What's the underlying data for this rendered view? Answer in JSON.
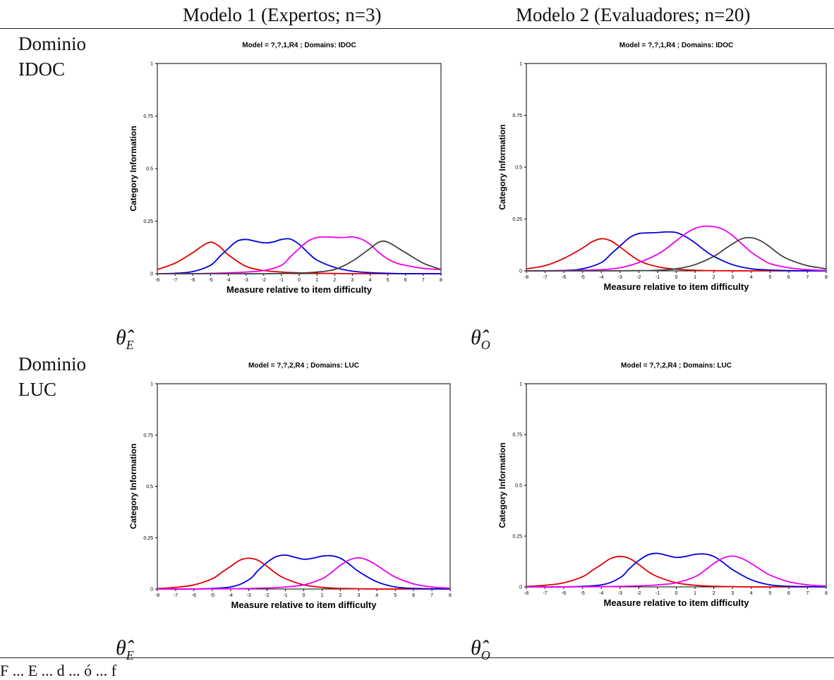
{
  "headers": {
    "col1": "Modelo 1 (Expertos; n=3)",
    "col2": "Modelo 2 (Evaluadores; n=20)"
  },
  "rows": [
    {
      "line1": "Dominio",
      "line2": "IDOC"
    },
    {
      "line1": "Dominio",
      "line2": "LUC"
    }
  ],
  "thetas": {
    "expert": {
      "symbol": "θ̂",
      "sub": "E"
    },
    "observer": {
      "symbol": "θ̂",
      "sub": "O"
    }
  },
  "footer": "F  ...  E  ...  d  ...  ó  ...  f",
  "colors": {
    "red": "#e00000",
    "blue": "#0000dd",
    "magenta": "#ee00ee",
    "gray": "#404040"
  },
  "chart_data": [
    {
      "type": "line",
      "title": "Model = ?,?,1,R4  ; Domains: IDOC",
      "xlabel": "Measure relative to item difficulty",
      "ylabel": "Category Information",
      "xlim": [
        -8,
        8
      ],
      "ylim": [
        0,
        1
      ],
      "xticks": [
        "-8",
        "-7",
        "-6",
        "-5",
        "-4",
        "-3",
        "-2",
        "-1",
        "0",
        "1",
        "2",
        "3",
        "4",
        "5",
        "6",
        "7",
        "8"
      ],
      "yticks": [
        "0",
        "0.25",
        "0.5",
        "0.75",
        "1"
      ],
      "grid": false,
      "series": [
        {
          "color": "red",
          "x": [
            -8,
            -7,
            -6,
            -5.5,
            -5,
            -4.5,
            -4,
            -3,
            -2,
            -1,
            0,
            1,
            2,
            3,
            4,
            5,
            6,
            7,
            8
          ],
          "y": [
            0.02,
            0.05,
            0.1,
            0.13,
            0.15,
            0.13,
            0.09,
            0.035,
            0.015,
            0.008,
            0.004,
            0.002,
            0.001,
            0,
            0,
            0,
            0,
            0,
            0
          ]
        },
        {
          "color": "blue",
          "x": [
            -8,
            -7,
            -6,
            -5,
            -4.5,
            -4,
            -3.5,
            -3,
            -2.5,
            -2,
            -1.5,
            -1,
            -0.5,
            0,
            0.5,
            1,
            2,
            3,
            4,
            5,
            6,
            7,
            8
          ],
          "y": [
            0,
            0.002,
            0.01,
            0.04,
            0.08,
            0.12,
            0.155,
            0.163,
            0.155,
            0.147,
            0.15,
            0.163,
            0.165,
            0.14,
            0.1,
            0.065,
            0.03,
            0.012,
            0.005,
            0.002,
            0,
            0,
            0
          ]
        },
        {
          "color": "magenta",
          "x": [
            -8,
            -6,
            -5,
            -4,
            -3,
            -2,
            -1,
            -0.5,
            0,
            0.5,
            1,
            1.5,
            2,
            2.5,
            3,
            3.5,
            4,
            4.5,
            5,
            5.5,
            6,
            7,
            8
          ],
          "y": [
            0,
            0,
            0.002,
            0.004,
            0.008,
            0.015,
            0.04,
            0.08,
            0.12,
            0.155,
            0.172,
            0.175,
            0.173,
            0.172,
            0.175,
            0.165,
            0.14,
            0.1,
            0.07,
            0.05,
            0.04,
            0.025,
            0.02
          ]
        },
        {
          "color": "gray",
          "x": [
            -8,
            -6,
            -4,
            -2,
            0,
            1,
            2,
            3,
            4,
            4.5,
            5,
            6,
            7,
            8
          ],
          "y": [
            0,
            0,
            0,
            0,
            0.003,
            0.008,
            0.02,
            0.06,
            0.12,
            0.15,
            0.15,
            0.1,
            0.05,
            0.02
          ]
        }
      ]
    },
    {
      "type": "line",
      "title": "Model = ?,?,1,R4  ; Domains: IDOC",
      "xlabel": "Measure relative to item difficulty",
      "ylabel": "Category Information",
      "xlim": [
        -8,
        8
      ],
      "ylim": [
        0,
        1
      ],
      "xticks": [
        "-8",
        "-7",
        "-6",
        "-5",
        "-4",
        "-3",
        "-2",
        "-1",
        "0",
        "1",
        "2",
        "3",
        "4",
        "5",
        "6",
        "7",
        "8"
      ],
      "yticks": [
        "0",
        "0.25",
        "0.5",
        "0.75",
        "1"
      ],
      "grid": false,
      "series": [
        {
          "color": "red",
          "x": [
            -8,
            -7,
            -6,
            -5,
            -4.5,
            -4,
            -3.5,
            -3,
            -2,
            -1,
            0,
            1,
            2,
            4,
            6,
            8
          ],
          "y": [
            0.01,
            0.025,
            0.06,
            0.11,
            0.14,
            0.155,
            0.145,
            0.115,
            0.05,
            0.02,
            0.008,
            0.003,
            0.001,
            0,
            0,
            0
          ]
        },
        {
          "color": "blue",
          "x": [
            -8,
            -6,
            -5,
            -4,
            -3.5,
            -3,
            -2.5,
            -2,
            -1.5,
            -1,
            -0.5,
            0,
            0.5,
            1,
            1.5,
            2,
            3,
            4,
            5,
            6,
            8
          ],
          "y": [
            0,
            0.002,
            0.01,
            0.04,
            0.08,
            0.12,
            0.16,
            0.18,
            0.183,
            0.185,
            0.188,
            0.185,
            0.165,
            0.135,
            0.1,
            0.07,
            0.03,
            0.01,
            0.004,
            0.001,
            0
          ]
        },
        {
          "color": "magenta",
          "x": [
            -8,
            -6,
            -4,
            -3,
            -2,
            -1,
            -0.5,
            0,
            0.5,
            1,
            1.5,
            2,
            2.5,
            3,
            3.5,
            4,
            4.5,
            5,
            6,
            7,
            8
          ],
          "y": [
            0,
            0.001,
            0.006,
            0.015,
            0.04,
            0.08,
            0.11,
            0.145,
            0.18,
            0.205,
            0.215,
            0.213,
            0.2,
            0.17,
            0.13,
            0.09,
            0.06,
            0.035,
            0.015,
            0.006,
            0.002
          ]
        },
        {
          "color": "gray",
          "x": [
            -8,
            -4,
            -2,
            -1,
            0,
            1,
            2,
            2.5,
            3,
            3.5,
            4,
            4.5,
            5,
            5.5,
            6,
            7,
            8
          ],
          "y": [
            0,
            0,
            0.001,
            0.003,
            0.01,
            0.03,
            0.07,
            0.1,
            0.13,
            0.155,
            0.16,
            0.145,
            0.115,
            0.08,
            0.055,
            0.025,
            0.01
          ]
        }
      ]
    },
    {
      "type": "line",
      "title": "Model = ?,?,2,R4  ; Domains: LUC",
      "xlabel": "Measure relative to item difficulty",
      "ylabel": "Category Information",
      "xlim": [
        -8,
        8
      ],
      "ylim": [
        0,
        1
      ],
      "xticks": [
        "-8",
        "-7",
        "-6",
        "-5",
        "-4",
        "-3",
        "-2",
        "-1",
        "0",
        "1",
        "2",
        "3",
        "4",
        "5",
        "6",
        "7",
        "8"
      ],
      "yticks": [
        "0",
        "0.25",
        "0.5",
        "0.75",
        "1"
      ],
      "grid": false,
      "series": [
        {
          "color": "red",
          "x": [
            -8,
            -7,
            -6,
            -5,
            -4.5,
            -4,
            -3.5,
            -3,
            -2.5,
            -2,
            -1.5,
            -1,
            0,
            1,
            2,
            4,
            6,
            8
          ],
          "y": [
            0.002,
            0.008,
            0.02,
            0.05,
            0.08,
            0.11,
            0.14,
            0.15,
            0.14,
            0.11,
            0.075,
            0.05,
            0.02,
            0.008,
            0.003,
            0,
            0,
            0
          ]
        },
        {
          "color": "blue",
          "x": [
            -8,
            -6,
            -4,
            -3,
            -2.5,
            -2,
            -1.5,
            -1,
            -0.5,
            0,
            0.5,
            1,
            1.5,
            2,
            2.5,
            3,
            4,
            5,
            6,
            8
          ],
          "y": [
            0,
            0,
            0.01,
            0.045,
            0.09,
            0.13,
            0.158,
            0.165,
            0.155,
            0.145,
            0.15,
            0.16,
            0.162,
            0.15,
            0.12,
            0.085,
            0.035,
            0.01,
            0.003,
            0
          ]
        },
        {
          "color": "magenta",
          "x": [
            -8,
            -4,
            -2,
            -1,
            0,
            1,
            1.5,
            2,
            2.5,
            3,
            3.5,
            4,
            4.5,
            5,
            6,
            7,
            8
          ],
          "y": [
            0,
            0.001,
            0.005,
            0.01,
            0.02,
            0.05,
            0.08,
            0.115,
            0.142,
            0.152,
            0.14,
            0.115,
            0.085,
            0.058,
            0.025,
            0.01,
            0.004
          ]
        }
      ]
    },
    {
      "type": "line",
      "title": "Model = ?,?,2,R4  ; Domains: LUC",
      "xlabel": "Measure relative to item difficulty",
      "ylabel": "Category Information",
      "xlim": [
        -8,
        8
      ],
      "ylim": [
        0,
        1
      ],
      "xticks": [
        "-8",
        "-7",
        "-6",
        "-5",
        "-4",
        "-3",
        "-2",
        "-1",
        "0",
        "1",
        "2",
        "3",
        "4",
        "5",
        "6",
        "7",
        "8"
      ],
      "yticks": [
        "0",
        "0.25",
        "0.5",
        "0.75",
        "1"
      ],
      "grid": false,
      "series": [
        {
          "color": "red",
          "x": [
            -8,
            -7,
            -6,
            -5,
            -4.5,
            -4,
            -3.5,
            -3,
            -2.5,
            -2,
            -1.5,
            -1,
            0,
            1,
            2,
            4,
            6,
            8
          ],
          "y": [
            0.002,
            0.008,
            0.02,
            0.05,
            0.08,
            0.11,
            0.14,
            0.15,
            0.14,
            0.11,
            0.075,
            0.05,
            0.02,
            0.008,
            0.003,
            0,
            0,
            0
          ]
        },
        {
          "color": "blue",
          "x": [
            -8,
            -6,
            -4,
            -3,
            -2.5,
            -2,
            -1.5,
            -1,
            -0.5,
            0,
            0.5,
            1,
            1.5,
            2,
            2.5,
            3,
            4,
            5,
            6,
            8
          ],
          "y": [
            0,
            0,
            0.01,
            0.045,
            0.09,
            0.13,
            0.158,
            0.165,
            0.155,
            0.145,
            0.15,
            0.16,
            0.162,
            0.15,
            0.12,
            0.085,
            0.035,
            0.01,
            0.003,
            0
          ]
        },
        {
          "color": "magenta",
          "x": [
            -8,
            -4,
            -2,
            -1,
            0,
            1,
            1.5,
            2,
            2.5,
            3,
            3.5,
            4,
            4.5,
            5,
            6,
            7,
            8
          ],
          "y": [
            0,
            0.001,
            0.005,
            0.01,
            0.02,
            0.05,
            0.08,
            0.115,
            0.142,
            0.152,
            0.14,
            0.115,
            0.085,
            0.058,
            0.025,
            0.01,
            0.004
          ]
        }
      ]
    }
  ]
}
